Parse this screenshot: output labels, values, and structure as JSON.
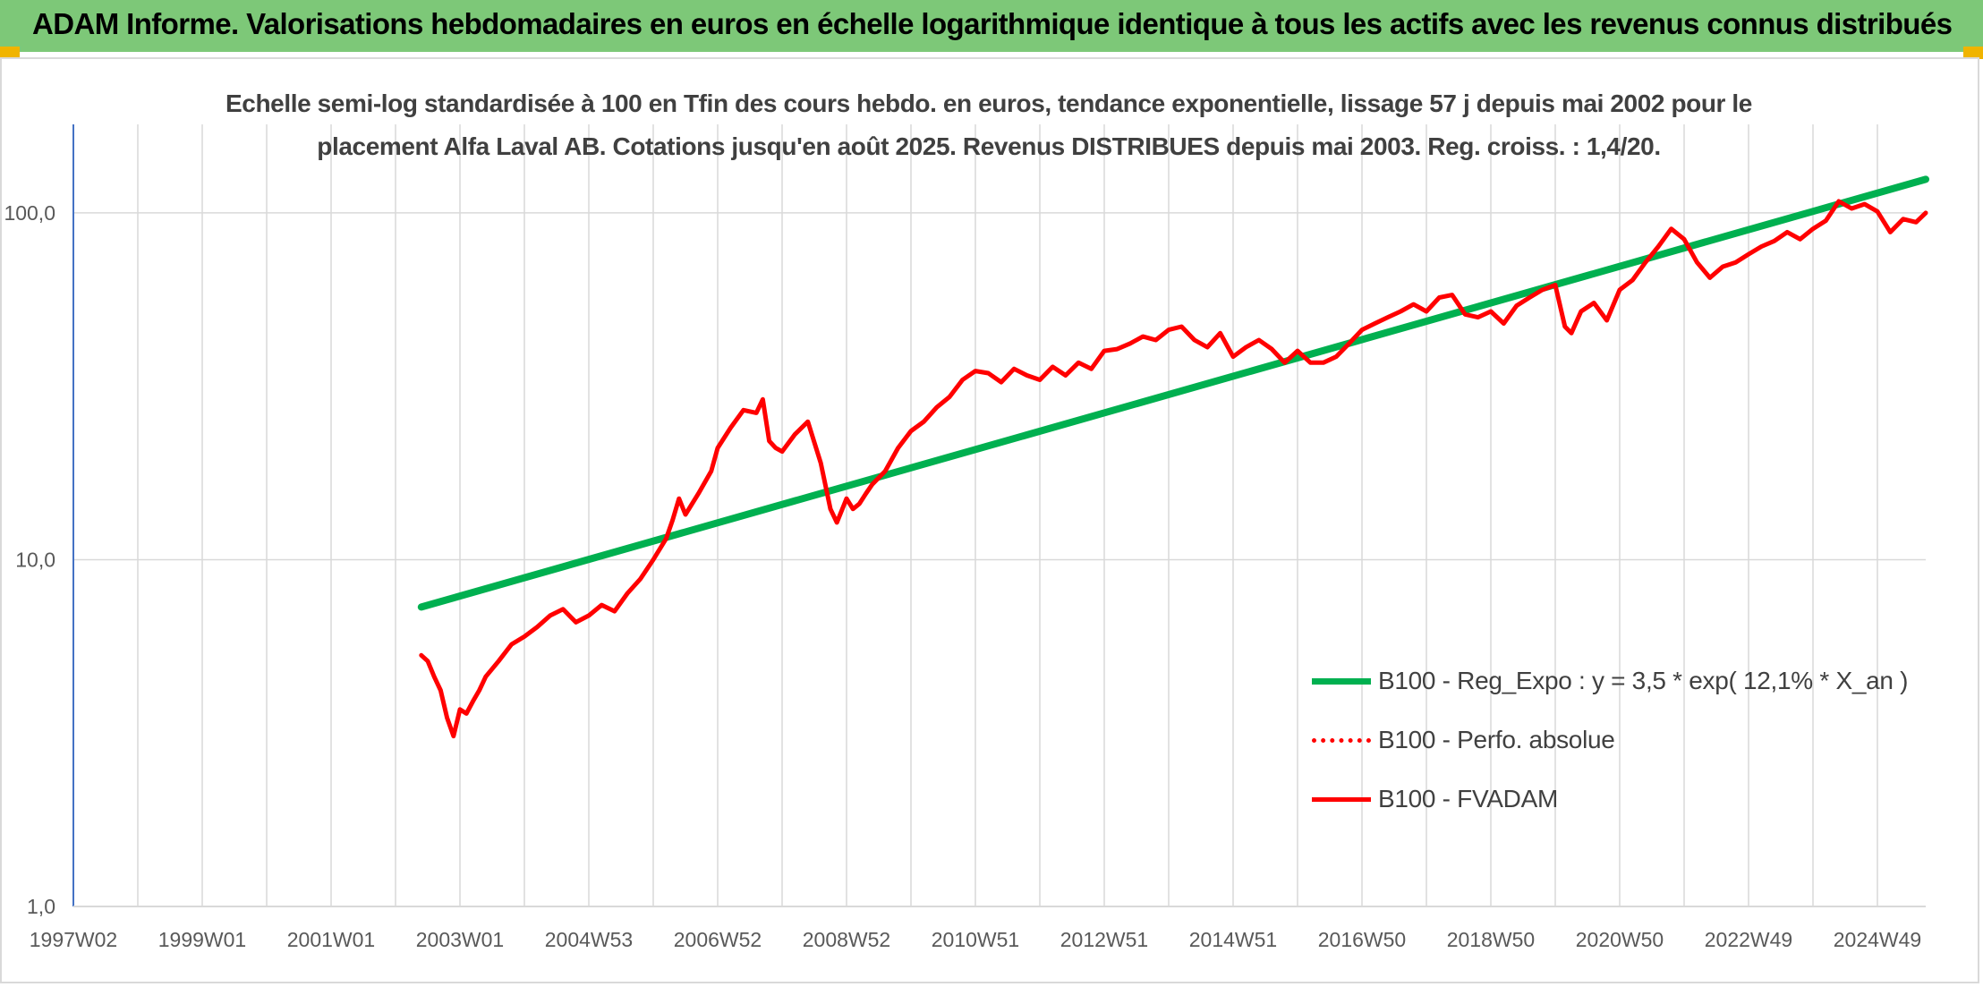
{
  "header": {
    "title": "ADAM Informe. Valorisations hebdomadaires en euros en échelle logarithmique identique à tous les actifs avec les revenus connus distribués",
    "background_color": "#7dc878",
    "accent_color": "#f0b400"
  },
  "chart_data": {
    "type": "line",
    "title": "Echelle semi-log standardisée à 100 en Tfin des cours hebdo. en euros, tendance exponentielle, lissage 57 j depuis mai 2002 pour le placement Alfa Laval AB. Cotations jusqu'en août 2025. Revenus DISTRIBUES depuis mai 2003. Reg. croiss. : 1,4/20.",
    "xlabel": "",
    "ylabel": "",
    "y_scale": "log",
    "ylim": [
      1,
      180
    ],
    "xlim": [
      1997.0,
      2025.75
    ],
    "y_ticks": [
      {
        "value": 1,
        "label": "1,0"
      },
      {
        "value": 10,
        "label": "10,0"
      },
      {
        "value": 100,
        "label": "100,0"
      }
    ],
    "x_ticks": [
      {
        "value": 1997.0,
        "label": "1997W02"
      },
      {
        "value": 1999.0,
        "label": "1999W01"
      },
      {
        "value": 2001.0,
        "label": "2001W01"
      },
      {
        "value": 2003.0,
        "label": "2003W01"
      },
      {
        "value": 2005.0,
        "label": "2004W53"
      },
      {
        "value": 2007.0,
        "label": "2006W52"
      },
      {
        "value": 2009.0,
        "label": "2008W52"
      },
      {
        "value": 2011.0,
        "label": "2010W51"
      },
      {
        "value": 2013.0,
        "label": "2012W51"
      },
      {
        "value": 2015.0,
        "label": "2014W51"
      },
      {
        "value": 2017.0,
        "label": "2016W50"
      },
      {
        "value": 2019.0,
        "label": "2018W50"
      },
      {
        "value": 2021.0,
        "label": "2020W50"
      },
      {
        "value": 2023.0,
        "label": "2022W49"
      },
      {
        "value": 2025.0,
        "label": "2024W49"
      }
    ],
    "grid": true,
    "legend_position": "bottom-right",
    "series": [
      {
        "name": "B100 - Reg_Expo : y = 3,5 * exp( 12,1% *  X_an )",
        "color": "#00b050",
        "style": "solid",
        "x": [
          2002.4,
          2025.75
        ],
        "y": [
          7.3,
          125
        ]
      },
      {
        "name": "B100 - Perfo. absolue",
        "color": "#ff0000",
        "style": "dotted",
        "x": [],
        "y": []
      },
      {
        "name": "B100 - FVADAM",
        "color": "#ff0000",
        "style": "solid",
        "x": [
          2002.4,
          2002.5,
          2002.6,
          2002.7,
          2002.8,
          2002.9,
          2003.0,
          2003.1,
          2003.2,
          2003.3,
          2003.4,
          2003.6,
          2003.8,
          2004.0,
          2004.2,
          2004.4,
          2004.6,
          2004.8,
          2005.0,
          2005.2,
          2005.4,
          2005.6,
          2005.8,
          2006.0,
          2006.2,
          2006.3,
          2006.4,
          2006.5,
          2006.7,
          2006.9,
          2007.0,
          2007.2,
          2007.4,
          2007.6,
          2007.7,
          2007.8,
          2007.9,
          2008.0,
          2008.2,
          2008.4,
          2008.6,
          2008.75,
          2008.85,
          2009.0,
          2009.1,
          2009.2,
          2009.3,
          2009.4,
          2009.6,
          2009.8,
          2010.0,
          2010.2,
          2010.4,
          2010.6,
          2010.8,
          2011.0,
          2011.2,
          2011.4,
          2011.6,
          2011.8,
          2012.0,
          2012.2,
          2012.4,
          2012.6,
          2012.8,
          2013.0,
          2013.2,
          2013.4,
          2013.6,
          2013.8,
          2014.0,
          2014.2,
          2014.4,
          2014.6,
          2014.8,
          2015.0,
          2015.2,
          2015.4,
          2015.6,
          2015.8,
          2016.0,
          2016.2,
          2016.4,
          2016.6,
          2016.8,
          2017.0,
          2017.2,
          2017.4,
          2017.6,
          2017.8,
          2018.0,
          2018.2,
          2018.4,
          2018.6,
          2018.8,
          2019.0,
          2019.2,
          2019.4,
          2019.6,
          2019.8,
          2020.0,
          2020.15,
          2020.25,
          2020.4,
          2020.6,
          2020.8,
          2021.0,
          2021.2,
          2021.4,
          2021.6,
          2021.8,
          2022.0,
          2022.2,
          2022.4,
          2022.6,
          2022.8,
          2023.0,
          2023.2,
          2023.4,
          2023.6,
          2023.8,
          2024.0,
          2024.2,
          2024.4,
          2024.6,
          2024.8,
          2025.0,
          2025.2,
          2025.4,
          2025.6,
          2025.75
        ],
        "y": [
          5.3,
          5.1,
          4.6,
          4.2,
          3.5,
          3.1,
          3.7,
          3.6,
          3.9,
          4.2,
          4.6,
          5.1,
          5.7,
          6.0,
          6.4,
          6.9,
          7.2,
          6.6,
          6.9,
          7.4,
          7.1,
          8.0,
          8.8,
          10.0,
          11.5,
          13.0,
          15.0,
          13.5,
          15.5,
          18.0,
          21.0,
          24.0,
          27.0,
          26.5,
          29.0,
          22.0,
          21.0,
          20.5,
          23.0,
          25.0,
          19.0,
          14.0,
          12.8,
          15.0,
          14.0,
          14.5,
          15.5,
          16.5,
          18.0,
          21.0,
          23.5,
          25.0,
          27.5,
          29.5,
          33.0,
          35.0,
          34.5,
          32.5,
          35.5,
          34.0,
          33.0,
          36.0,
          34.0,
          37.0,
          35.5,
          40.0,
          40.5,
          42.0,
          44.0,
          43.0,
          46.0,
          47.0,
          43.0,
          41.0,
          45.0,
          38.5,
          41.0,
          43.0,
          40.5,
          37.0,
          40.0,
          37.0,
          37.0,
          38.5,
          42.0,
          46.0,
          48.0,
          50.0,
          52.0,
          54.5,
          52.0,
          57.0,
          58.0,
          51.0,
          50.0,
          52.0,
          48.0,
          54.0,
          57.0,
          60.0,
          62.0,
          47.0,
          45.0,
          52.0,
          55.0,
          49.0,
          60.0,
          64.0,
          72.0,
          80.0,
          90.0,
          84.0,
          72.0,
          65.0,
          70.0,
          72.0,
          76.0,
          80.0,
          83.0,
          88.0,
          84.0,
          90.0,
          95.0,
          108.0,
          103.0,
          106.0,
          101.0,
          88.0,
          96.0,
          94.0,
          100.0
        ]
      }
    ]
  }
}
